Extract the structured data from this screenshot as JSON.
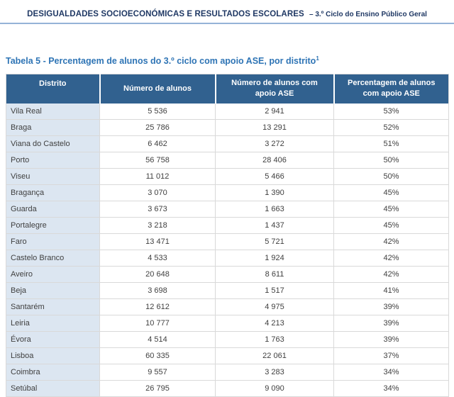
{
  "page_header": {
    "title": "DESIGUALDADES SOCIOECONÓMICAS E RESULTADOS ESCOLARES",
    "subtitle": "– 3.º Ciclo do Ensino Público Geral"
  },
  "table": {
    "caption": "Tabela 5 - Percentagem de alunos do 3.º ciclo com apoio ASE, por distrito",
    "caption_footnote_marker": "1",
    "columns": [
      "Distrito",
      "Número de alunos",
      "Número de alunos com apoio ASE",
      "Percentagem de alunos com apoio ASE"
    ],
    "rows": [
      {
        "district": "Vila Real",
        "students": "5 536",
        "ase_students": "2 941",
        "pct": "53%"
      },
      {
        "district": "Braga",
        "students": "25 786",
        "ase_students": "13 291",
        "pct": "52%"
      },
      {
        "district": "Viana do Castelo",
        "students": "6 462",
        "ase_students": "3 272",
        "pct": "51%"
      },
      {
        "district": "Porto",
        "students": "56 758",
        "ase_students": "28 406",
        "pct": "50%"
      },
      {
        "district": "Viseu",
        "students": "11 012",
        "ase_students": "5 466",
        "pct": "50%"
      },
      {
        "district": "Bragança",
        "students": "3 070",
        "ase_students": "1 390",
        "pct": "45%"
      },
      {
        "district": "Guarda",
        "students": "3 673",
        "ase_students": "1 663",
        "pct": "45%"
      },
      {
        "district": "Portalegre",
        "students": "3 218",
        "ase_students": "1 437",
        "pct": "45%"
      },
      {
        "district": "Faro",
        "students": "13 471",
        "ase_students": "5 721",
        "pct": "42%"
      },
      {
        "district": "Castelo Branco",
        "students": "4 533",
        "ase_students": "1 924",
        "pct": "42%"
      },
      {
        "district": "Aveiro",
        "students": "20 648",
        "ase_students": "8 611",
        "pct": "42%"
      },
      {
        "district": "Beja",
        "students": "3 698",
        "ase_students": "1 517",
        "pct": "41%"
      },
      {
        "district": "Santarém",
        "students": "12 612",
        "ase_students": "4 975",
        "pct": "39%"
      },
      {
        "district": "Leiria",
        "students": "10 777",
        "ase_students": "4 213",
        "pct": "39%"
      },
      {
        "district": "Évora",
        "students": "4 514",
        "ase_students": "1 763",
        "pct": "39%"
      },
      {
        "district": "Lisboa",
        "students": "60 335",
        "ase_students": "22 061",
        "pct": "37%"
      },
      {
        "district": "Coimbra",
        "students": "9 557",
        "ase_students": "3 283",
        "pct": "34%"
      },
      {
        "district": "Setúbal",
        "students": "26 795",
        "ase_students": "9 090",
        "pct": "34%"
      }
    ]
  },
  "colors": {
    "header_band_bg": "#31618F",
    "first_column_bg": "#DCE6F1",
    "caption_blue": "#2E74B5",
    "rule_blue": "#95B3D7",
    "running_header_text": "#1F3864",
    "body_text": "#3F3F3F",
    "grid_line": "#D9D9D9"
  }
}
